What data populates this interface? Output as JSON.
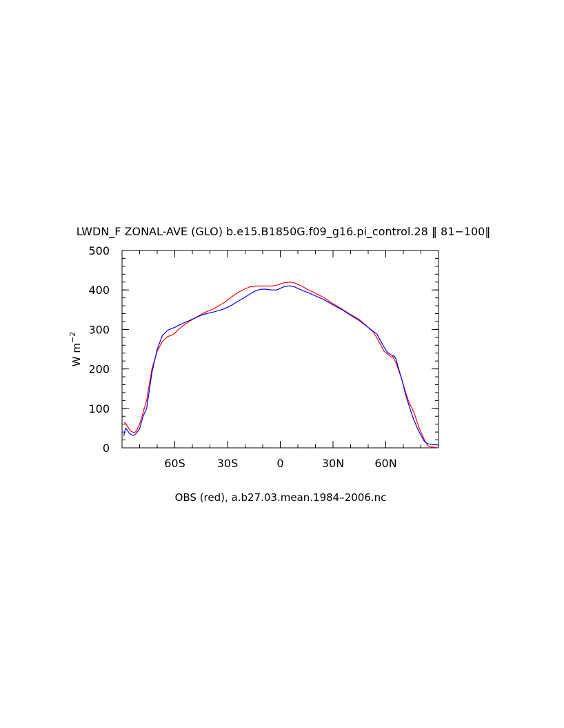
{
  "chart_data": {
    "type": "line",
    "title": "LWDN_F ZONAL-AVE (GLO) b.e15.B1850G.f09_g16.pi_control.28 ‖ 81−100‖",
    "ylabel_main": "W m",
    "ylabel_sup": "−2",
    "xlabel": "OBS (red), a.b27.03.mean.1984–2006.nc",
    "xlim": [
      -90,
      90
    ],
    "ylim": [
      0,
      500
    ],
    "xticks": [
      {
        "value": -60,
        "label": "60S"
      },
      {
        "value": -30,
        "label": "30S"
      },
      {
        "value": 0,
        "label": "0"
      },
      {
        "value": 30,
        "label": "30N"
      },
      {
        "value": 60,
        "label": "60N"
      }
    ],
    "yticks": [
      {
        "value": 0,
        "label": "0"
      },
      {
        "value": 100,
        "label": "100"
      },
      {
        "value": 200,
        "label": "200"
      },
      {
        "value": 300,
        "label": "300"
      },
      {
        "value": 400,
        "label": "400"
      },
      {
        "value": 500,
        "label": "500"
      }
    ],
    "x_minor_step": 10,
    "y_minor_step": 20,
    "grid": false,
    "series": [
      {
        "color": "#ff0000",
        "x": [
          -89,
          -88,
          -87,
          -86,
          -85,
          -84,
          -83,
          -82,
          -80,
          -78,
          -76,
          -73,
          -70,
          -67,
          -64,
          -62,
          -60,
          -58,
          -55,
          -52,
          -48,
          -45,
          -42,
          -38,
          -35,
          -32,
          -29,
          -26,
          -23,
          -20,
          -17,
          -14,
          -11,
          -8,
          -5,
          -2,
          0,
          2,
          4,
          6,
          8,
          10,
          13,
          16,
          20,
          25,
          30,
          35,
          40,
          45,
          50,
          53,
          55,
          57,
          59,
          61,
          63,
          64,
          65,
          66,
          67,
          69,
          71,
          73,
          76,
          79,
          82,
          84,
          86,
          88,
          90
        ],
        "y": [
          65,
          62,
          55,
          48,
          42,
          40,
          38,
          42,
          60,
          90,
          120,
          200,
          245,
          270,
          282,
          285,
          290,
          300,
          310,
          320,
          330,
          338,
          345,
          352,
          360,
          368,
          378,
          388,
          396,
          403,
          408,
          410,
          410,
          410,
          410,
          412,
          415,
          418,
          419,
          420,
          418,
          414,
          408,
          400,
          392,
          380,
          365,
          352,
          338,
          325,
          305,
          293,
          278,
          262,
          245,
          238,
          230,
          232,
          222,
          214,
          200,
          175,
          145,
          118,
          90,
          50,
          20,
          5,
          2,
          1,
          0
        ]
      },
      {
        "color": "#0000ff",
        "x": [
          -89,
          -88,
          -87,
          -86,
          -85,
          -84,
          -83,
          -82,
          -80,
          -78,
          -76,
          -73,
          -70,
          -67,
          -64,
          -62,
          -60,
          -58,
          -55,
          -52,
          -48,
          -45,
          -42,
          -38,
          -35,
          -32,
          -29,
          -26,
          -23,
          -20,
          -17,
          -14,
          -11,
          -8,
          -5,
          -2,
          0,
          2,
          4,
          6,
          8,
          10,
          13,
          16,
          20,
          25,
          30,
          35,
          40,
          45,
          50,
          52,
          55,
          57,
          59,
          61,
          63,
          65,
          66,
          67,
          69,
          71,
          73,
          76,
          79,
          82,
          84,
          86,
          88,
          90
        ],
        "y": [
          30,
          50,
          44,
          38,
          34,
          32,
          32,
          36,
          48,
          80,
          100,
          190,
          250,
          285,
          298,
          302,
          305,
          310,
          316,
          322,
          330,
          336,
          340,
          344,
          348,
          352,
          358,
          366,
          374,
          382,
          390,
          398,
          402,
          402,
          400,
          400,
          404,
          408,
          410,
          410,
          408,
          404,
          398,
          393,
          385,
          375,
          362,
          350,
          336,
          322,
          305,
          298,
          288,
          272,
          255,
          242,
          236,
          232,
          222,
          205,
          175,
          140,
          110,
          70,
          40,
          16,
          10,
          9,
          8,
          7
        ]
      }
    ]
  }
}
